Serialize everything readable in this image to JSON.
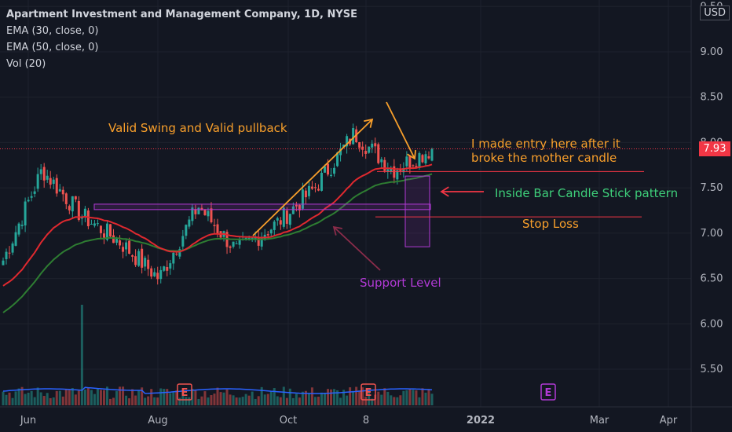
{
  "chart_title": "Apartment Investment and Management Company, 1D, NYSE",
  "indicators": [
    "EMA (30, close, 0)",
    "EMA (50, close, 0)",
    "Vol (20)"
  ],
  "currency": "USD",
  "last_price_label": "7.93",
  "colors": {
    "background": "#131722",
    "up_candle": "#26a69a",
    "down_candle": "#ef5350",
    "ema30": "#e0292f",
    "ema50": "#2e7d32",
    "volume_avg": "#2962ff",
    "annotation_orange": "#f89f2b",
    "annotation_purple": "#b23ad6",
    "annotation_green": "#3ecf7a",
    "annotation_red": "#f23645"
  },
  "annotations": {
    "swing": "Valid Swing and Valid pullback",
    "entry_line1": "I made entry here after it",
    "entry_line2": "broke the mother candle",
    "inside_bar": "Inside Bar Candle Stick pattern",
    "stop_loss": "Stop Loss",
    "support": "Support Level"
  },
  "earnings_marker": "E",
  "chart_data": {
    "type": "candlestick",
    "title": "Apartment Investment and Management Company, 1D, NYSE",
    "y_ticks": [
      "9.50",
      "9.00",
      "8.50",
      "8.00",
      "7.50",
      "7.00",
      "6.50",
      "6.00",
      "5.50"
    ],
    "y_tick_values": [
      9.5,
      9.0,
      8.5,
      8.0,
      7.5,
      7.0,
      6.5,
      6.0,
      5.5
    ],
    "x_ticks": [
      "Jun",
      "Aug",
      "Oct",
      "8",
      "2022",
      "Mar",
      "Apr"
    ],
    "ylim": [
      5.08,
      9.58
    ],
    "last_price": 7.93,
    "support_zone": [
      7.26,
      7.32
    ],
    "entry_level": 7.68,
    "stop_level": 7.18,
    "approx_close_path": [
      {
        "period": "Jun",
        "close": 6.7
      },
      {
        "period": "late Jun",
        "close": 7.7
      },
      {
        "period": "Jul",
        "close": 7.2
      },
      {
        "period": "Aug",
        "close": 6.9
      },
      {
        "period": "late Aug",
        "close": 6.5
      },
      {
        "period": "Sep",
        "close": 7.3
      },
      {
        "period": "late Sep",
        "close": 6.8
      },
      {
        "period": "Oct",
        "close": 7.1
      },
      {
        "period": "late Oct",
        "close": 7.5
      },
      {
        "period": "Nov",
        "close": 8.1
      },
      {
        "period": "late Nov",
        "close": 7.7
      },
      {
        "period": "Dec",
        "close": 7.93
      }
    ],
    "volume_spike_period": "late Jun",
    "earnings_periods": [
      "Aug",
      "8",
      "Mar"
    ]
  }
}
